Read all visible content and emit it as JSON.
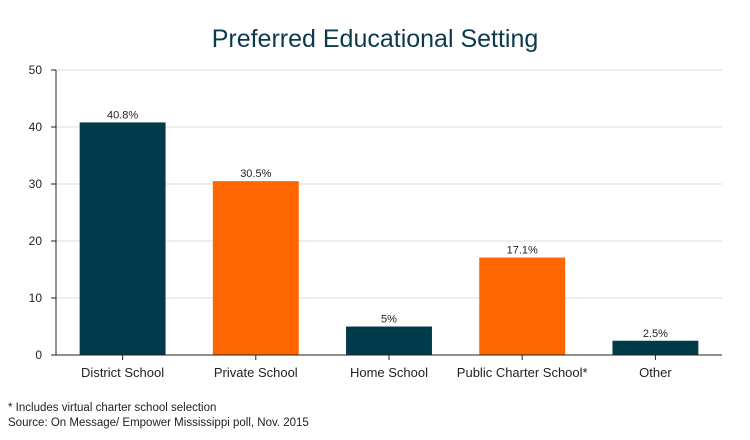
{
  "chart_data": {
    "type": "bar",
    "title": "Preferred Educational Setting",
    "xlabel": "",
    "ylabel": "",
    "categories": [
      "District School",
      "Private School",
      "Home School",
      "Public Charter School*",
      "Other"
    ],
    "values": [
      40.8,
      30.5,
      5,
      17.1,
      2.5
    ],
    "data_labels": [
      "40.8%",
      "30.5%",
      "5%",
      "17.1%",
      "2.5%"
    ],
    "bar_colors": [
      "#003b4c",
      "#ff6600",
      "#003b4c",
      "#ff6600",
      "#003b4c"
    ],
    "ylim": [
      0,
      50
    ],
    "yticks": [
      0,
      10,
      20,
      30,
      40,
      50
    ],
    "grid": true,
    "legend": "none"
  },
  "notes": {
    "footnote": "* Includes virtual charter school selection",
    "source": "Source: On Message/ Empower Mississippi poll, Nov. 2015"
  },
  "colors": {
    "title": "#0b3a4c",
    "grid": "#dddddd",
    "axis": "#222222"
  }
}
